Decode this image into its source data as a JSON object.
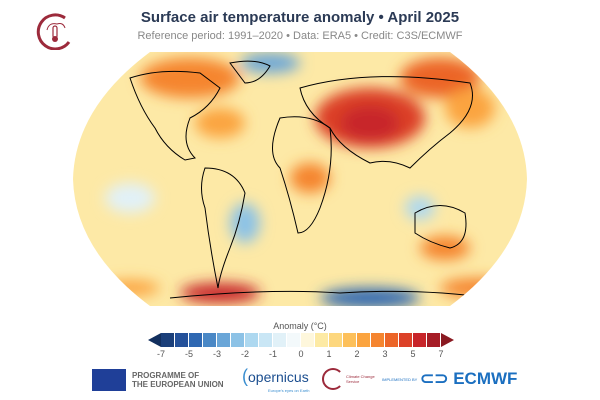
{
  "header": {
    "title": "Surface air temperature anomaly • April 2025",
    "subtitle": "Reference period: 1991–2020 • Data: ERA5 • Credit: C3S/ECMWF",
    "logo_icon": "climate-thermometer-icon"
  },
  "map": {
    "projection": "Robinson",
    "background": "#fde9a6",
    "features": "coastlines"
  },
  "colorbar": {
    "label": "Anomaly (°C)",
    "ticks": [
      "-7",
      "-5",
      "-3",
      "-2",
      "-1",
      "0",
      "1",
      "2",
      "3",
      "5",
      "7"
    ],
    "colors": [
      "#1b3f7a",
      "#24519a",
      "#2f68b2",
      "#4a88c6",
      "#6aa6d8",
      "#8cc2e6",
      "#add8f0",
      "#c9e6f5",
      "#e1f1f8",
      "#f3f9fb",
      "#fef7dc",
      "#fdeaa4",
      "#fdd77e",
      "#fdc05a",
      "#fba43f",
      "#f5852f",
      "#ec6528",
      "#dc4128",
      "#c8252a",
      "#a61d26"
    ],
    "under_color": "#122f5e",
    "over_color": "#8a1a22"
  },
  "footer": {
    "eu_line1": "PROGRAMME OF",
    "eu_line2": "THE EUROPEAN UNION",
    "copernicus": "opernicus",
    "copernicus_tag": "Europe's eyes on Earth",
    "c3s": "Climate Change Service",
    "implemented": "IMPLEMENTED BY",
    "ecmwf": "ECMWF"
  }
}
